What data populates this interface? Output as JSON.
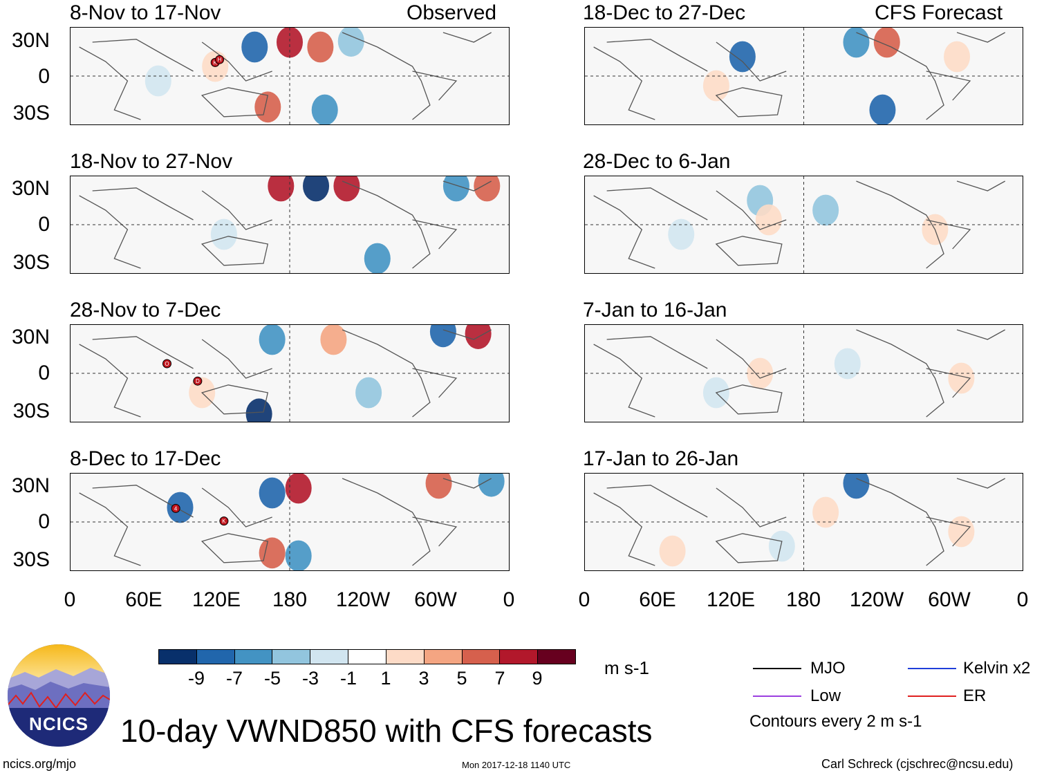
{
  "title": "10-day VWND850 with CFS forecasts",
  "observed_label": "Observed",
  "forecast_label": "CFS Forecast",
  "panels_left": [
    {
      "title": "8-Nov to 17-Nov"
    },
    {
      "title": "18-Nov to 27-Nov"
    },
    {
      "title": "28-Nov to 7-Dec"
    },
    {
      "title": "8-Dec to 17-Dec"
    }
  ],
  "panels_right": [
    {
      "title": "18-Dec to 27-Dec"
    },
    {
      "title": "28-Dec to 6-Jan"
    },
    {
      "title": "7-Jan to 16-Jan"
    },
    {
      "title": "17-Jan to 26-Jan"
    }
  ],
  "y_ticks": [
    "30N",
    "0",
    "30S"
  ],
  "x_ticks": [
    "0",
    "60E",
    "120E",
    "180",
    "120W",
    "60W",
    "0"
  ],
  "colorbar": {
    "unit": "m s-1",
    "labels": [
      "-9",
      "-7",
      "-5",
      "-3",
      "-1",
      "1",
      "3",
      "5",
      "7",
      "9"
    ],
    "colors": [
      "#08306b",
      "#2166ac",
      "#4393c3",
      "#92c5de",
      "#d1e5f0",
      "#ffffff",
      "#fddbc7",
      "#f4a582",
      "#d6604d",
      "#b2182b",
      "#67001f"
    ]
  },
  "legend": {
    "mjo": "MJO",
    "kelvin": "Kelvin x2",
    "low": "Low",
    "er": "ER",
    "mjo_color": "#000000",
    "kelvin_color": "#1f3fd9",
    "low_color": "#9b3fe0",
    "er_color": "#e0201f",
    "contours_note": "Contours every 2 m s-1"
  },
  "storm_labels": [
    "K",
    "H",
    "O",
    "D",
    "4",
    "K"
  ],
  "logo_text": "NCICS",
  "footer": {
    "url": "ncics.org/mjo",
    "timestamp": "Mon 2017-12-18 1140 UTC",
    "author": "Carl Schreck (cjschrec@ncsu.edu)"
  }
}
